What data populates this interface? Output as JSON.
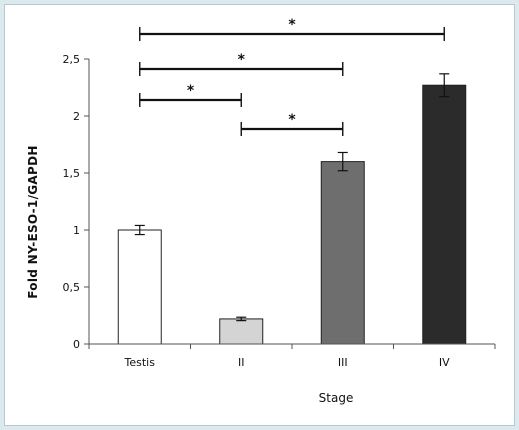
{
  "chart_data": {
    "type": "bar",
    "xlabel": "Stage",
    "ylabel": "Fold NY-ESO-1/GAPDH",
    "categories": [
      "Testis",
      "II",
      "III",
      "IV"
    ],
    "values": [
      1.0,
      0.22,
      1.6,
      2.27
    ],
    "errors": [
      0.04,
      0.015,
      0.08,
      0.1
    ],
    "colors": [
      "#ffffff",
      "#d4d4d4",
      "#6e6e6e",
      "#2b2b2b"
    ],
    "ylim": [
      0,
      2.5
    ],
    "yticks": [
      "0",
      "0,5",
      "1",
      "1,5",
      "2",
      "2,5"
    ],
    "significance": [
      {
        "from": "Testis",
        "to": "IV",
        "label": "*"
      },
      {
        "from": "Testis",
        "to": "III",
        "label": "*"
      },
      {
        "from": "Testis",
        "to": "II",
        "label": "*"
      },
      {
        "from": "II",
        "to": "III",
        "label": "*"
      }
    ]
  }
}
